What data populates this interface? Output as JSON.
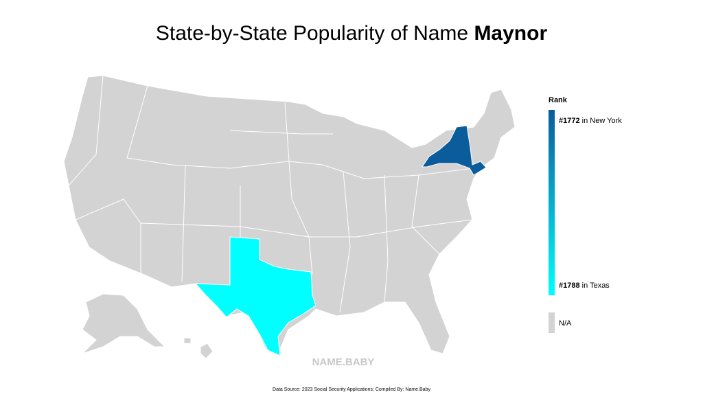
{
  "title": {
    "text": "State-by-State Popularity of Name",
    "name": "Maynor"
  },
  "legend": {
    "title": "Rank",
    "items": [
      {
        "value": 1772,
        "value_label": "#1772",
        "label": "in New York",
        "color": "#0b5c9a"
      },
      {
        "value": 1788,
        "value_label": "#1788",
        "label": "in Texas",
        "color": "#00ffff"
      }
    ],
    "na": {
      "label": "N/A",
      "color": "#d3d3d3"
    }
  },
  "watermark": "NAME.BABY",
  "source": "Data Source: 2023 Social Security Applications; Compiled By: Name.Baby"
}
